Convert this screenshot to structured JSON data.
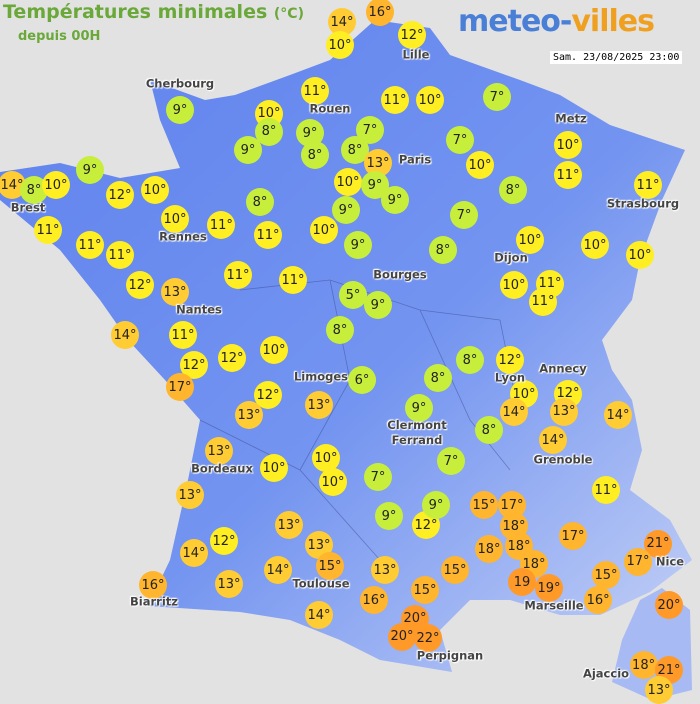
{
  "header": {
    "title": "Températures minimales",
    "unit": "(°C)",
    "subtitle": "depuis 00H",
    "logo_main": "meteo-",
    "logo_accent": "villes",
    "datetime": "Sam. 23/08/2025 23:00"
  },
  "colors": {
    "land": "#6d8ff0",
    "sea": "#e2e2e2",
    "cold": "#c8ee3c",
    "mild": "#ffee22",
    "warm": "#ffcc33",
    "hot": "#ffb52e",
    "very_hot": "#ff9a28"
  },
  "cities": [
    "Cherbourg",
    "Lille",
    "Rouen",
    "Metz",
    "Paris",
    "Brest",
    "Rennes",
    "Strasbourg",
    "Dijon",
    "Bourges",
    "Nantes",
    "Annecy",
    "Limoges",
    "Lyon",
    "Clermont Ferrand",
    "Grenoble",
    "Bordeaux",
    "Nice",
    "Toulouse",
    "Marseille",
    "Biarritz",
    "Perpignan",
    "Ajaccio"
  ],
  "temperatures": [
    "14°",
    "16°",
    "10°",
    "12°",
    "11°",
    "11°",
    "10°",
    "7°",
    "9°",
    "10°",
    "8°",
    "9°",
    "7°",
    "8°",
    "8°",
    "7°",
    "13°",
    "10°",
    "10°",
    "11°",
    "9°",
    "9°",
    "14°",
    "8°",
    "10°",
    "12°",
    "10°",
    "10°",
    "9°",
    "9°",
    "8°",
    "11°",
    "8°",
    "9°",
    "7°",
    "11°",
    "10°",
    "11°",
    "11°",
    "10°",
    "9°",
    "8°",
    "10°",
    "10°",
    "10°",
    "11°",
    "11°",
    "12°",
    "13°",
    "11°",
    "11°",
    "5°",
    "9°",
    "10°",
    "11°",
    "11°",
    "14°",
    "11°",
    "8°",
    "12°",
    "12°",
    "10°",
    "17°",
    "6°",
    "8°",
    "12°",
    "10°",
    "12°",
    "13°",
    "8°",
    "14°",
    "14°",
    "12°",
    "13°",
    "13°",
    "9°",
    "8°",
    "14°",
    "13°",
    "10°",
    "10°",
    "10°",
    "7°",
    "7°",
    "11°",
    "13°",
    "9°",
    "12°",
    "9°",
    "15°",
    "17°",
    "18°",
    "17°",
    "21°",
    "13°",
    "12°",
    "13°",
    "14°",
    "18°",
    "18°",
    "17°",
    "18°",
    "19",
    "19°",
    "15°",
    "16°",
    "14°",
    "13°",
    "15°",
    "13°",
    "15°",
    "15°",
    "16°",
    "16°",
    "20°",
    "20°",
    "20°",
    "22°",
    "14°",
    "18°",
    "21°",
    "13°"
  ]
}
